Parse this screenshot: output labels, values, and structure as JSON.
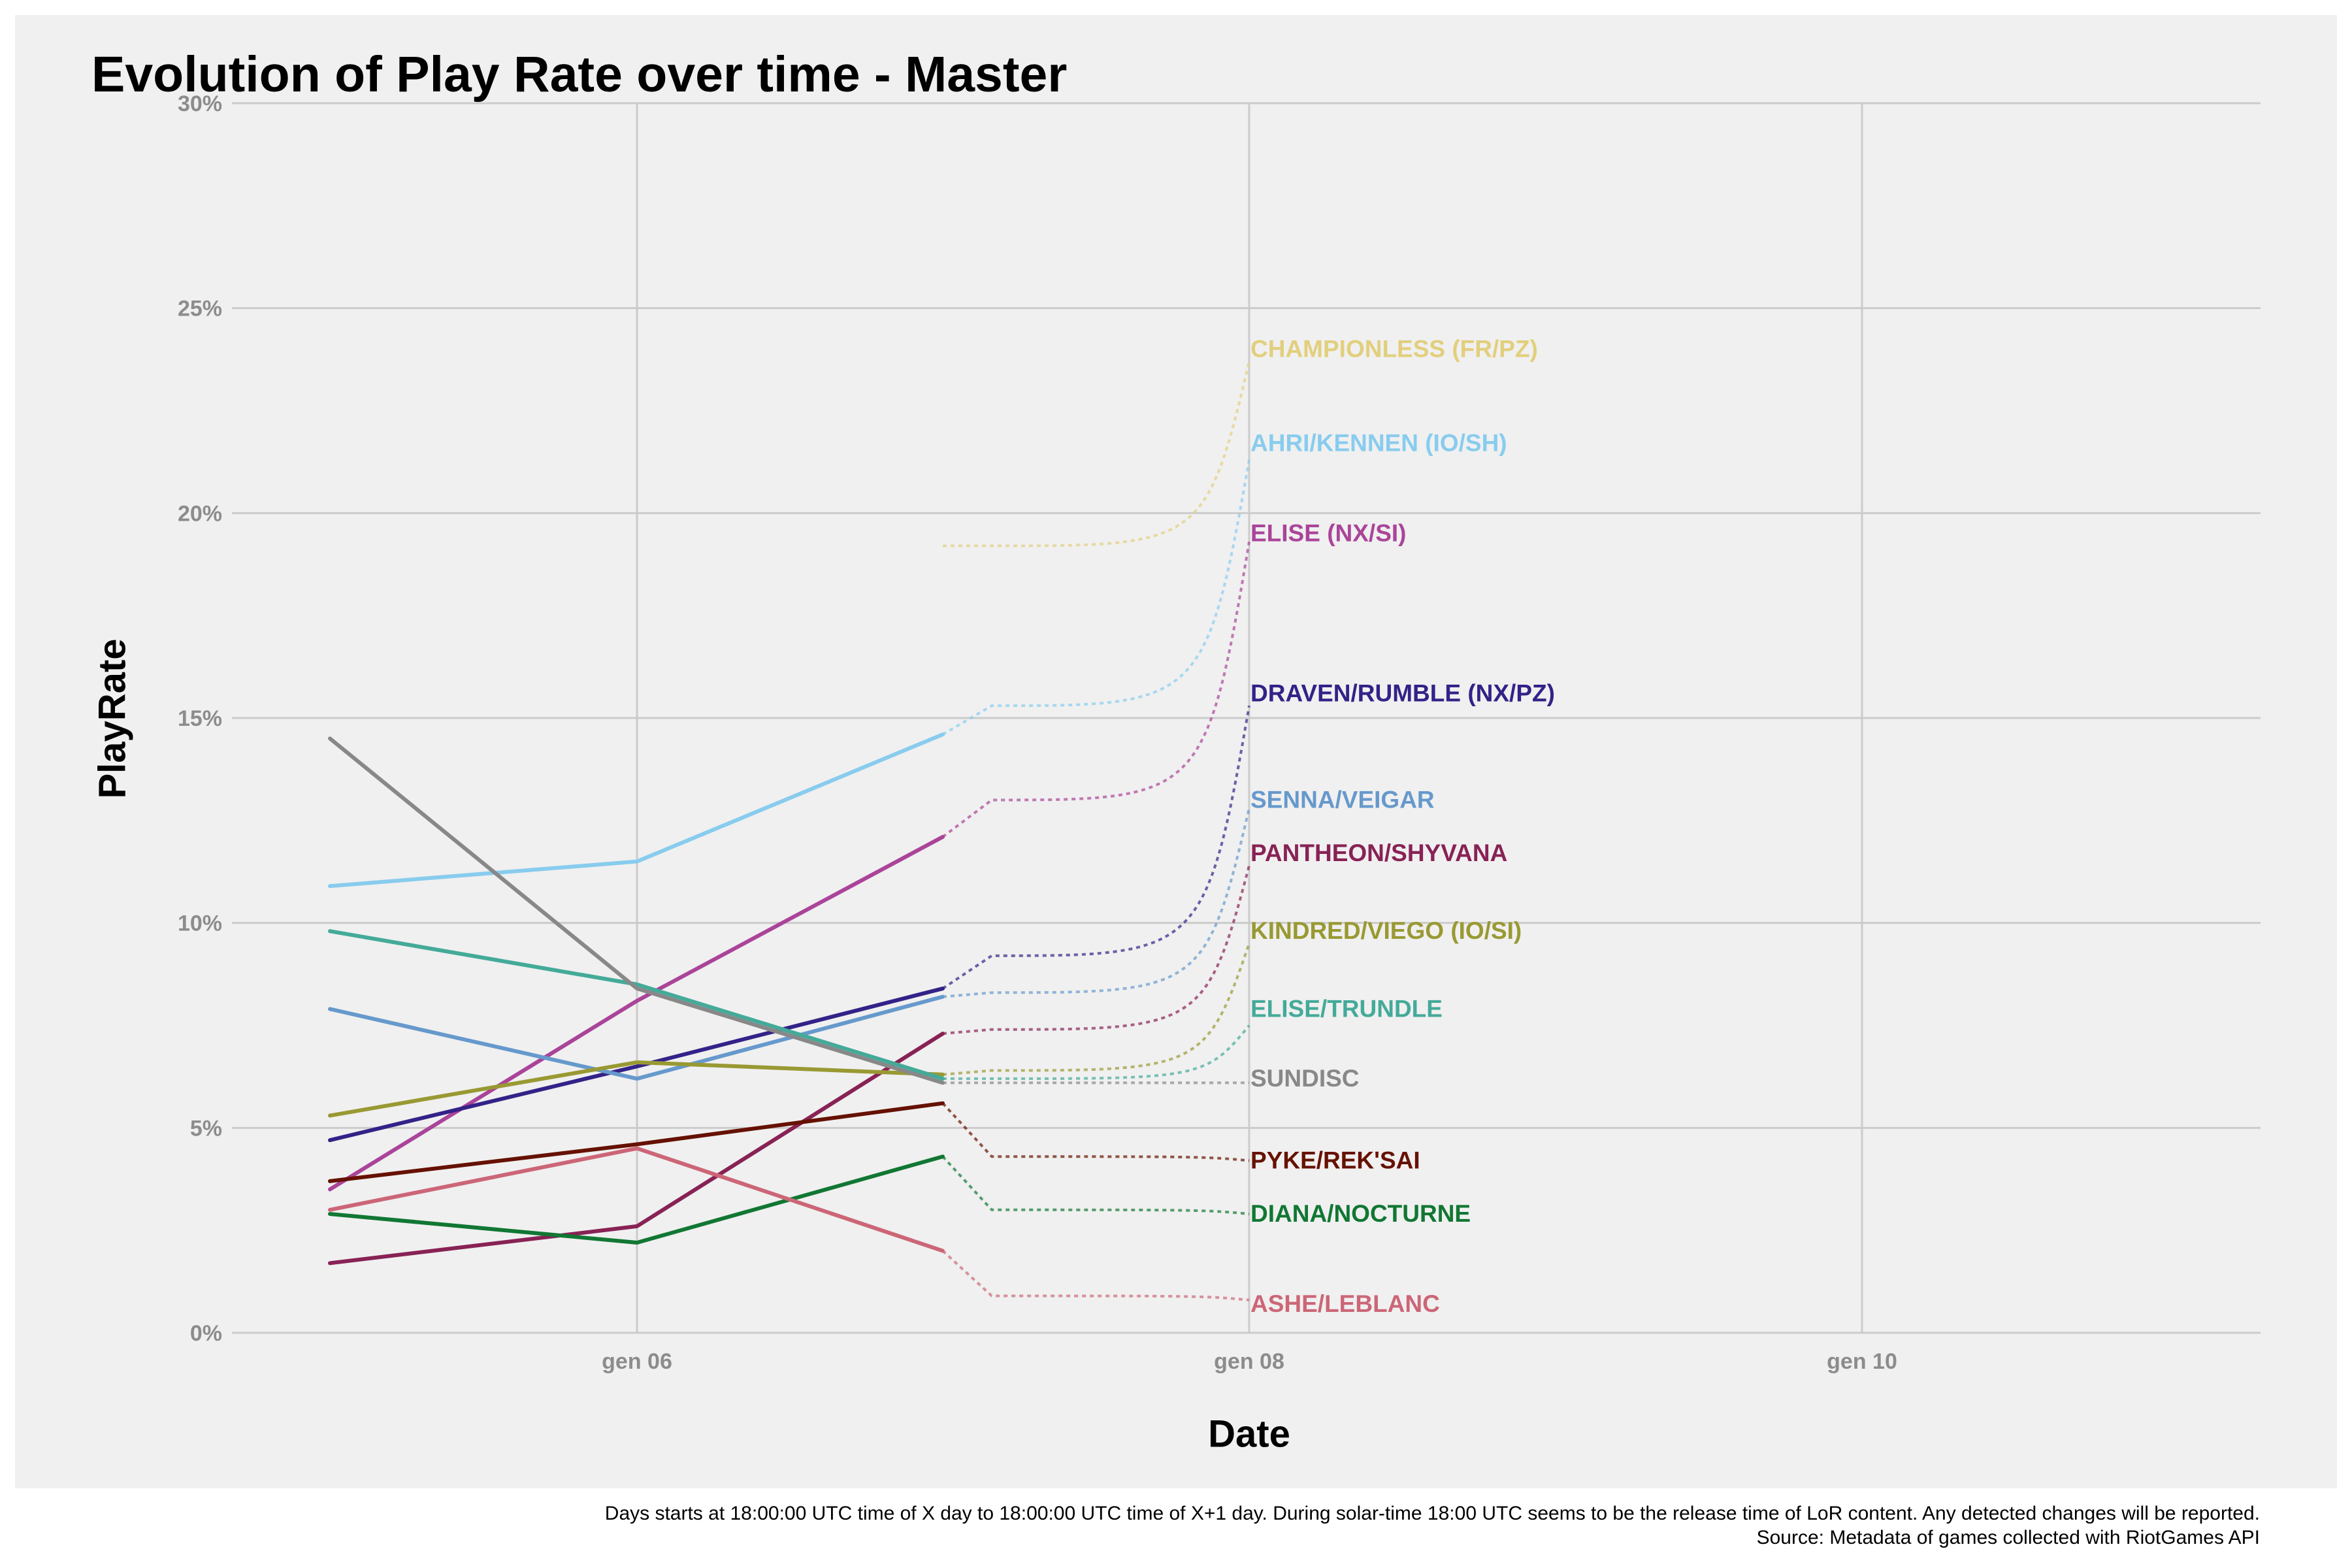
{
  "chart_data": {
    "type": "line",
    "title": "Evolution of Play Rate over time - Master",
    "xlabel": "Date",
    "ylabel": "PlayRate",
    "x_ticks": [
      "gen 06",
      "gen 08",
      "gen 10"
    ],
    "y_ticks": [
      "0%",
      "5%",
      "10%",
      "15%",
      "20%",
      "25%",
      "30%"
    ],
    "ylim": [
      0,
      30
    ],
    "grid": true,
    "x": [
      "gen 05",
      "gen 06",
      "gen 07"
    ],
    "label_x": "gen 08",
    "series": [
      {
        "name": "CHAMPIONLESS (FR/PZ)",
        "color": "#e2cf7d",
        "values": [
          null,
          null,
          null
        ],
        "dotted": [
          19.2,
          19.2,
          23.7
        ],
        "label_y": 24.0
      },
      {
        "name": "AHRI/KENNEN (IO/SH)",
        "color": "#88ccee",
        "values": [
          10.9,
          11.5,
          14.6
        ],
        "dotted": [
          14.6,
          15.3,
          21.3
        ],
        "label_y": 21.7
      },
      {
        "name": "ELISE (NX/SI)",
        "color": "#aa4499",
        "values": [
          3.5,
          8.1,
          12.1
        ],
        "dotted": [
          12.1,
          13.0,
          19.3
        ],
        "label_y": 19.5
      },
      {
        "name": "DRAVEN/RUMBLE (NX/PZ)",
        "color": "#332288",
        "values": [
          4.7,
          6.5,
          8.4
        ],
        "dotted": [
          8.4,
          9.2,
          15.3
        ],
        "label_y": 15.6
      },
      {
        "name": "SENNA/VEIGAR",
        "color": "#6699cc",
        "values": [
          7.9,
          6.2,
          8.2
        ],
        "dotted": [
          8.2,
          8.3,
          12.8
        ],
        "label_y": 13.0
      },
      {
        "name": "PANTHEON/SHYVANA",
        "color": "#882255",
        "values": [
          1.7,
          2.6,
          7.3
        ],
        "dotted": [
          7.3,
          7.4,
          11.4
        ],
        "label_y": 11.7
      },
      {
        "name": "KINDRED/VIEGO (IO/SI)",
        "color": "#999933",
        "values": [
          5.3,
          6.6,
          6.3
        ],
        "dotted": [
          6.3,
          6.4,
          9.5
        ],
        "label_y": 9.8
      },
      {
        "name": "ELISE/TRUNDLE",
        "color": "#44aa99",
        "values": [
          9.8,
          8.5,
          6.2
        ],
        "dotted": [
          6.2,
          6.2,
          7.5
        ],
        "label_y": 7.9
      },
      {
        "name": "SUNDISC",
        "color": "#888888",
        "values": [
          14.5,
          8.4,
          6.1
        ],
        "dotted": [
          6.1,
          6.1,
          6.1
        ],
        "label_y": 6.2
      },
      {
        "name": "PYKE/REK'SAI",
        "color": "#661100",
        "values": [
          3.7,
          4.6,
          5.6
        ],
        "dotted": [
          5.6,
          4.3,
          4.2
        ],
        "label_y": 4.2
      },
      {
        "name": "DIANA/NOCTURNE",
        "color": "#117733",
        "values": [
          2.9,
          2.2,
          4.3
        ],
        "dotted": [
          4.3,
          3.0,
          2.9
        ],
        "label_y": 2.9
      },
      {
        "name": "ASHE/LEBLANC",
        "color": "#cc6677",
        "values": [
          3.0,
          4.5,
          2.0
        ],
        "dotted": [
          2.0,
          0.9,
          0.8
        ],
        "label_y": 0.7
      }
    ]
  },
  "caption": {
    "line1": "Days starts at 18:00:00 UTC time of X day to 18:00:00 UTC time of X+1 day. During solar-time 18:00 UTC seems to be the release time of LoR content. Any detected changes will be reported.",
    "line2": "Source: Metadata of games collected with RiotGames API"
  }
}
